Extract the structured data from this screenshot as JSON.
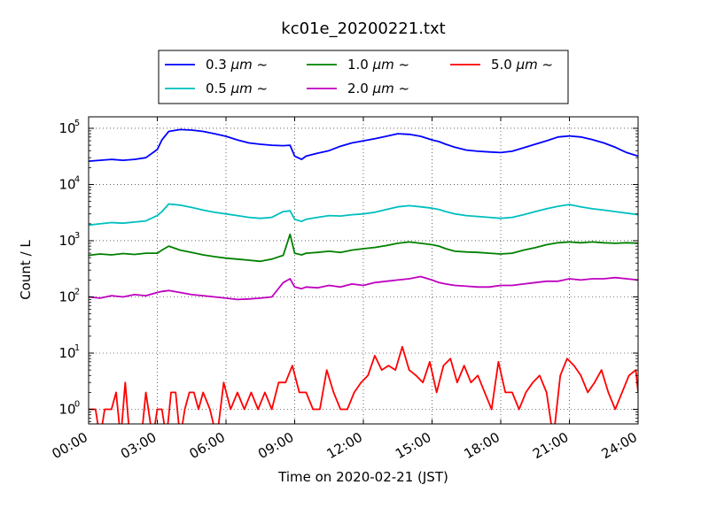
{
  "chart_data": {
    "type": "line",
    "title": "kc01e_20200221.txt",
    "xlabel": "Time on 2020-02-21 (JST)",
    "ylabel": "Count / L",
    "y_scale": "log",
    "ylim": [
      0.55,
      160000
    ],
    "xlim": [
      0,
      24
    ],
    "grid": true,
    "legend_position": "top-center",
    "x_ticks": [
      {
        "value": 0,
        "label": "00:00"
      },
      {
        "value": 3,
        "label": "03:00"
      },
      {
        "value": 6,
        "label": "06:00"
      },
      {
        "value": 9,
        "label": "09:00"
      },
      {
        "value": 12,
        "label": "12:00"
      },
      {
        "value": 15,
        "label": "15:00"
      },
      {
        "value": 18,
        "label": "18:00"
      },
      {
        "value": 21,
        "label": "21:00"
      },
      {
        "value": 24,
        "label": "24:00"
      }
    ],
    "y_ticks": [
      {
        "value": 1,
        "base": "10",
        "exp": "0"
      },
      {
        "value": 10,
        "base": "10",
        "exp": "1"
      },
      {
        "value": 100,
        "base": "10",
        "exp": "2"
      },
      {
        "value": 1000,
        "base": "10",
        "exp": "3"
      },
      {
        "value": 10000,
        "base": "10",
        "exp": "4"
      },
      {
        "value": 100000,
        "base": "10",
        "exp": "5"
      }
    ],
    "series": [
      {
        "name": "0.3 μm ~",
        "name_value": "0.3 ",
        "name_unit": "μm",
        "name_suffix": " ~",
        "color": "#0000ff",
        "x": [
          0,
          0.5,
          1,
          1.5,
          2,
          2.5,
          3,
          3.2,
          3.5,
          4,
          4.5,
          5,
          5.5,
          6,
          6.5,
          7,
          7.5,
          8,
          8.5,
          8.8,
          9,
          9.3,
          9.5,
          10,
          10.5,
          11,
          11.5,
          12,
          12.5,
          13,
          13.5,
          14,
          14.5,
          15,
          15.3,
          15.6,
          16,
          16.5,
          17,
          17.5,
          18,
          18.5,
          19,
          19.5,
          20,
          20.5,
          21,
          21.5,
          22,
          22.5,
          23,
          23.5,
          24
        ],
        "y": [
          26000,
          27000,
          28000,
          27000,
          28000,
          30000,
          42000,
          62000,
          88000,
          95000,
          93000,
          88000,
          80000,
          72000,
          62000,
          55000,
          52000,
          50000,
          49000,
          50000,
          32000,
          28000,
          32000,
          36000,
          40000,
          48000,
          55000,
          60000,
          65000,
          72000,
          80000,
          78000,
          72000,
          62000,
          58000,
          52000,
          46000,
          41000,
          39000,
          38000,
          37000,
          39000,
          45000,
          52000,
          60000,
          70000,
          73000,
          70000,
          63000,
          55000,
          46000,
          37000,
          32000
        ]
      },
      {
        "name": "0.5 μm ~",
        "name_value": "0.5 ",
        "name_unit": "μm",
        "name_suffix": " ~",
        "color": "#00bfbf",
        "x": [
          0,
          0.5,
          1,
          1.5,
          2,
          2.5,
          3,
          3.2,
          3.5,
          4,
          4.5,
          5,
          5.5,
          6,
          6.5,
          7,
          7.5,
          8,
          8.5,
          8.8,
          9,
          9.3,
          9.5,
          10,
          10.5,
          11,
          11.5,
          12,
          12.5,
          13,
          13.5,
          14,
          14.5,
          15,
          15.3,
          15.6,
          16,
          16.5,
          17,
          17.5,
          18,
          18.5,
          19,
          19.5,
          20,
          20.5,
          21,
          21.5,
          22,
          22.5,
          23,
          23.5,
          24
        ],
        "y": [
          1900,
          2000,
          2100,
          2050,
          2150,
          2250,
          2800,
          3300,
          4500,
          4300,
          3900,
          3500,
          3200,
          3000,
          2800,
          2600,
          2500,
          2600,
          3300,
          3400,
          2400,
          2200,
          2400,
          2600,
          2800,
          2750,
          2900,
          3000,
          3200,
          3600,
          4000,
          4200,
          4000,
          3800,
          3600,
          3300,
          3000,
          2800,
          2700,
          2600,
          2500,
          2600,
          2900,
          3300,
          3700,
          4100,
          4400,
          4000,
          3700,
          3500,
          3300,
          3100,
          2900
        ]
      },
      {
        "name": "1.0 μm ~",
        "name_value": "1.0 ",
        "name_unit": "μm",
        "name_suffix": " ~",
        "color": "#008000",
        "x": [
          0,
          0.5,
          1,
          1.5,
          2,
          2.5,
          3,
          3.2,
          3.5,
          4,
          4.5,
          5,
          5.5,
          6,
          6.5,
          7,
          7.5,
          8,
          8.5,
          8.8,
          9,
          9.3,
          9.5,
          10,
          10.5,
          11,
          11.5,
          12,
          12.5,
          13,
          13.5,
          14,
          14.5,
          15,
          15.3,
          15.6,
          16,
          16.5,
          17,
          17.5,
          18,
          18.5,
          19,
          19.5,
          20,
          20.5,
          21,
          21.5,
          22,
          22.5,
          23,
          23.5,
          24
        ],
        "y": [
          550,
          580,
          560,
          590,
          570,
          600,
          600,
          680,
          800,
          680,
          620,
          560,
          520,
          490,
          470,
          450,
          430,
          470,
          550,
          1300,
          600,
          560,
          600,
          620,
          650,
          620,
          680,
          720,
          760,
          820,
          900,
          950,
          900,
          850,
          800,
          720,
          650,
          630,
          620,
          600,
          580,
          600,
          680,
          750,
          850,
          920,
          950,
          920,
          950,
          920,
          900,
          920,
          900
        ]
      },
      {
        "name": "2.0 μm ~",
        "name_value": "2.0 ",
        "name_unit": "μm",
        "name_suffix": " ~",
        "color": "#bf00bf",
        "x": [
          0,
          0.5,
          1,
          1.5,
          2,
          2.5,
          3,
          3.2,
          3.5,
          4,
          4.5,
          5,
          5.5,
          6,
          6.5,
          7,
          7.5,
          8,
          8.5,
          8.8,
          9,
          9.3,
          9.5,
          10,
          10.5,
          11,
          11.5,
          12,
          12.5,
          13,
          13.5,
          14,
          14.5,
          15,
          15.3,
          15.6,
          16,
          16.5,
          17,
          17.5,
          18,
          18.5,
          19,
          19.5,
          20,
          20.5,
          21,
          21.5,
          22,
          22.5,
          23,
          23.5,
          24
        ],
        "y": [
          100,
          95,
          105,
          100,
          110,
          105,
          120,
          125,
          130,
          120,
          110,
          105,
          100,
          95,
          90,
          92,
          95,
          100,
          180,
          210,
          150,
          140,
          150,
          145,
          160,
          150,
          170,
          160,
          180,
          190,
          200,
          210,
          230,
          200,
          180,
          170,
          160,
          155,
          150,
          150,
          160,
          160,
          170,
          180,
          190,
          190,
          210,
          200,
          210,
          210,
          220,
          210,
          200
        ]
      },
      {
        "name": "5.0 μm ~",
        "name_value": "5.0 ",
        "name_unit": "μm",
        "name_suffix": " ~",
        "color": "#ff0000",
        "x": [
          0,
          0.3,
          0.5,
          0.7,
          1,
          1.2,
          1.4,
          1.6,
          1.8,
          2,
          2.3,
          2.5,
          2.8,
          3,
          3.2,
          3.4,
          3.6,
          3.8,
          4,
          4.2,
          4.4,
          4.6,
          4.8,
          5,
          5.3,
          5.6,
          5.9,
          6.2,
          6.5,
          6.8,
          7.1,
          7.4,
          7.7,
          8,
          8.3,
          8.6,
          8.9,
          9.2,
          9.5,
          9.8,
          10.1,
          10.4,
          10.7,
          11,
          11.3,
          11.6,
          11.9,
          12.2,
          12.5,
          12.8,
          13.1,
          13.4,
          13.7,
          14,
          14.3,
          14.6,
          14.9,
          15.2,
          15.5,
          15.8,
          16.1,
          16.4,
          16.7,
          17,
          17.3,
          17.6,
          17.9,
          18.2,
          18.5,
          18.8,
          19.1,
          19.4,
          19.7,
          20,
          20.3,
          20.6,
          20.9,
          21.2,
          21.5,
          21.8,
          22.1,
          22.4,
          22.7,
          23,
          23.3,
          23.6,
          23.9,
          24
        ],
        "y": [
          1,
          1,
          0.3,
          1,
          1,
          2,
          0.3,
          3,
          0.3,
          0.3,
          0.3,
          2,
          0.3,
          1,
          1,
          0.3,
          2,
          2,
          0.3,
          1,
          2,
          2,
          1,
          2,
          1,
          0.3,
          3,
          1,
          2,
          1,
          2,
          1,
          2,
          1,
          3,
          3,
          6,
          2,
          2,
          1,
          1,
          5,
          2,
          1,
          1,
          2,
          3,
          4,
          9,
          5,
          6,
          5,
          13,
          5,
          4,
          3,
          7,
          2,
          6,
          8,
          3,
          6,
          3,
          4,
          2,
          1,
          7,
          2,
          2,
          1,
          2,
          3,
          4,
          2,
          0.3,
          4,
          8,
          6,
          4,
          2,
          3,
          5,
          2,
          1,
          2,
          4,
          5,
          2
        ]
      }
    ]
  }
}
